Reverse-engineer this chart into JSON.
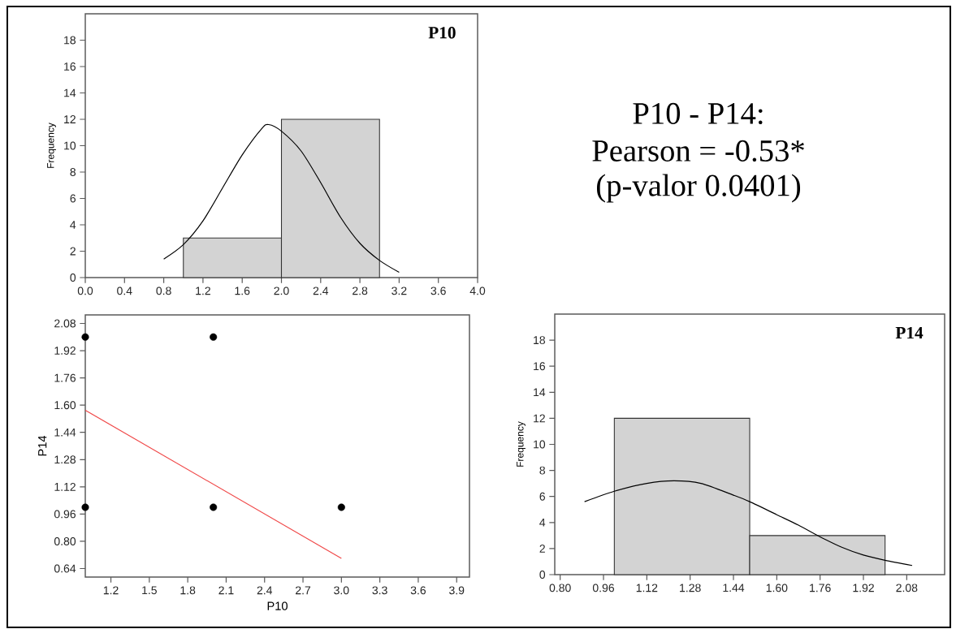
{
  "chart_data": [
    {
      "type": "histogram",
      "title": "P10",
      "ylabel": "Frequency",
      "bins": [
        1,
        2,
        3
      ],
      "values": [
        3,
        12
      ],
      "color": "#d3d3d3",
      "xlim": [
        0,
        4
      ],
      "ylim": [
        0,
        20
      ],
      "xticks": [
        {
          "value": 0,
          "label": "0.0"
        },
        {
          "value": 0.4,
          "label": "0.4"
        },
        {
          "value": 0.8,
          "label": "0.8"
        },
        {
          "value": 1.2,
          "label": "1.2"
        },
        {
          "value": 1.6,
          "label": "1.6"
        },
        {
          "value": 2,
          "label": "2.0"
        },
        {
          "value": 2.4,
          "label": "2.4"
        },
        {
          "value": 2.8,
          "label": "2.8"
        },
        {
          "value": 3.2,
          "label": "3.2"
        },
        {
          "value": 3.6,
          "label": "3.6"
        },
        {
          "value": 4,
          "label": "4.0"
        }
      ],
      "yticks": [
        0,
        2,
        4,
        6,
        8,
        10,
        12,
        14,
        16,
        18
      ],
      "series": [
        {
          "type": "line",
          "color": "#000000",
          "x": [
            0.8,
            1.0,
            1.2,
            1.4,
            1.6,
            1.8,
            1.87,
            2.0,
            2.2,
            2.4,
            2.6,
            2.8,
            3.0,
            3.2
          ],
          "values": [
            1.4,
            2.5,
            4.3,
            6.8,
            9.3,
            11.3,
            11.6,
            11.1,
            9.6,
            7.2,
            4.6,
            2.6,
            1.3,
            0.4
          ]
        }
      ]
    },
    {
      "type": "other",
      "annotations": [
        "P10 - P14:",
        "Pearson = -0.53*",
        "(p-valor 0.0401)"
      ]
    },
    {
      "type": "scatter",
      "xlabel": "P10",
      "ylabel": "P14",
      "xlim": [
        1,
        4
      ],
      "ylim": [
        0.59,
        2.13
      ],
      "xticks": [
        {
          "value": 1.2,
          "label": "1.2"
        },
        {
          "value": 1.5,
          "label": "1.5"
        },
        {
          "value": 1.8,
          "label": "1.8"
        },
        {
          "value": 2.1,
          "label": "2.1"
        },
        {
          "value": 2.4,
          "label": "2.4"
        },
        {
          "value": 2.7,
          "label": "2.7"
        },
        {
          "value": 3.0,
          "label": "3.0"
        },
        {
          "value": 3.3,
          "label": "3.3"
        },
        {
          "value": 3.6,
          "label": "3.6"
        },
        {
          "value": 3.9,
          "label": "3.9"
        }
      ],
      "yticks": [
        0.64,
        {
          "value": 0.8,
          "label": "0.80"
        },
        0.96,
        1.12,
        1.28,
        1.44,
        {
          "value": 1.6,
          "label": "1.60"
        },
        1.76,
        1.92,
        2.08
      ],
      "series": [
        {
          "type": "scatter",
          "marker": "circle",
          "color": "#000000",
          "x": [
            1,
            2,
            1,
            2,
            3
          ],
          "values": [
            2,
            2,
            1,
            1,
            1
          ]
        },
        {
          "type": "line",
          "marker": "none",
          "color": "#f04848",
          "x": [
            1,
            3
          ],
          "values": [
            1.57,
            0.7
          ]
        }
      ]
    },
    {
      "type": "histogram",
      "title": "P14",
      "ylabel": "Frequency",
      "bins": [
        1,
        1.5,
        2
      ],
      "values": [
        12,
        3
      ],
      "color": "#d3d3d3",
      "xlim": [
        0.78,
        2.22
      ],
      "ylim": [
        0,
        20
      ],
      "xticks": [
        {
          "value": 0.8,
          "label": "0.80"
        },
        0.96,
        1.12,
        1.28,
        1.44,
        {
          "value": 1.6,
          "label": "1.60"
        },
        1.76,
        1.92,
        2.08
      ],
      "yticks": [
        0,
        2,
        4,
        6,
        8,
        10,
        12,
        14,
        16,
        18
      ],
      "series": [
        {
          "type": "line",
          "color": "#000000",
          "x": [
            0.89,
            1.0,
            1.12,
            1.22,
            1.32,
            1.44,
            1.5,
            1.6,
            1.68,
            1.76,
            1.84,
            1.92,
            2.0,
            2.1
          ],
          "values": [
            5.6,
            6.4,
            7.0,
            7.2,
            7.0,
            6.1,
            5.6,
            4.6,
            3.8,
            2.9,
            2.1,
            1.5,
            1.1,
            0.7
          ]
        }
      ]
    }
  ]
}
